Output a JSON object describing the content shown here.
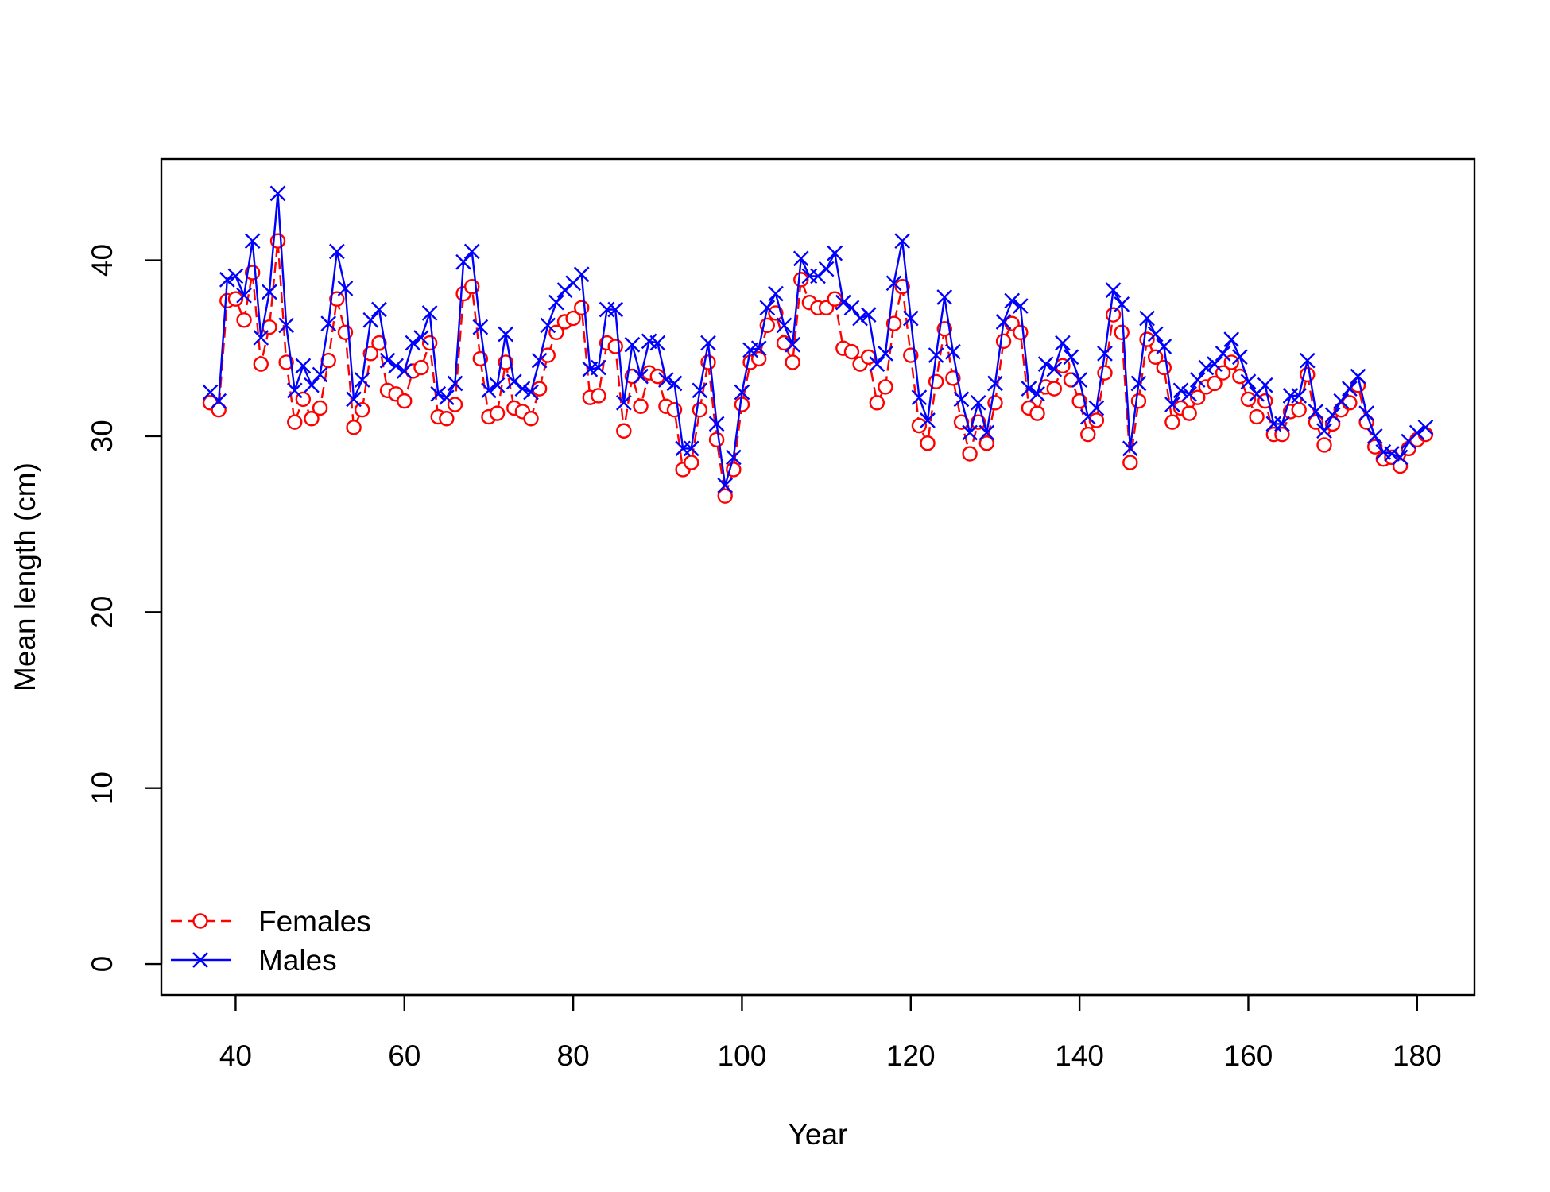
{
  "chart_data": {
    "type": "line",
    "title": "",
    "xlabel": "Year",
    "ylabel": "Mean length (cm)",
    "xlim": [
      31.2,
      186.8
    ],
    "ylim": [
      -1.76,
      45.76
    ],
    "xticks": [
      40,
      60,
      80,
      100,
      120,
      140,
      160,
      180
    ],
    "yticks": [
      0,
      10,
      20,
      30,
      40
    ],
    "grid": false,
    "legend_position": "bottom-left",
    "x": [
      37,
      38,
      39,
      40,
      41,
      42,
      43,
      44,
      45,
      46,
      47,
      48,
      49,
      50,
      51,
      52,
      53,
      54,
      55,
      56,
      57,
      58,
      59,
      60,
      61,
      62,
      63,
      64,
      65,
      66,
      67,
      68,
      69,
      70,
      71,
      72,
      73,
      74,
      75,
      76,
      77,
      78,
      79,
      80,
      81,
      82,
      83,
      84,
      85,
      86,
      87,
      88,
      89,
      90,
      91,
      92,
      93,
      94,
      95,
      96,
      97,
      98,
      99,
      100,
      101,
      102,
      103,
      104,
      105,
      106,
      107,
      108,
      109,
      110,
      111,
      112,
      113,
      114,
      115,
      116,
      117,
      118,
      119,
      120,
      121,
      122,
      123,
      124,
      125,
      126,
      127,
      128,
      129,
      130,
      131,
      132,
      133,
      134,
      135,
      136,
      137,
      138,
      139,
      140,
      141,
      142,
      143,
      144,
      145,
      146,
      147,
      148,
      149,
      150,
      151,
      152,
      153,
      154,
      155,
      156,
      157,
      158,
      159,
      160,
      161,
      162,
      163,
      164,
      165,
      166,
      167,
      168,
      169,
      170,
      171,
      172,
      173,
      174,
      175,
      176,
      177,
      178,
      179,
      180,
      181
    ],
    "series": [
      {
        "name": "Females",
        "color": "#ff0000",
        "line_style": "dashed",
        "marker": "circle",
        "values": [
          31.9,
          31.5,
          37.7,
          37.8,
          36.6,
          39.3,
          34.1,
          36.2,
          41.1,
          34.2,
          30.8,
          32.1,
          31.0,
          31.6,
          34.3,
          37.8,
          35.9,
          30.5,
          31.5,
          34.7,
          35.3,
          32.6,
          32.4,
          32.0,
          33.7,
          33.9,
          35.3,
          31.1,
          31.0,
          31.8,
          38.1,
          38.5,
          34.4,
          31.1,
          31.3,
          34.2,
          31.6,
          31.4,
          31.0,
          32.7,
          34.6,
          35.9,
          36.5,
          36.7,
          37.3,
          32.2,
          32.3,
          35.3,
          35.1,
          30.3,
          33.4,
          31.7,
          33.6,
          33.4,
          31.7,
          31.5,
          28.1,
          28.5,
          31.5,
          34.2,
          29.8,
          26.6,
          28.1,
          31.8,
          34.2,
          34.4,
          36.3,
          37.0,
          35.3,
          34.2,
          38.9,
          37.6,
          37.3,
          37.3,
          37.8,
          35.0,
          34.8,
          34.1,
          34.5,
          31.9,
          32.8,
          36.4,
          38.5,
          34.6,
          30.6,
          29.6,
          33.1,
          36.1,
          33.3,
          30.8,
          29.0,
          30.8,
          29.6,
          31.9,
          35.4,
          36.4,
          35.9,
          31.6,
          31.3,
          32.8,
          32.7,
          34.0,
          33.2,
          32.0,
          30.1,
          30.9,
          33.6,
          36.9,
          35.9,
          28.5,
          32.0,
          35.5,
          34.5,
          33.9,
          30.8,
          31.6,
          31.3,
          32.2,
          32.8,
          33.0,
          33.6,
          34.2,
          33.4,
          32.1,
          31.1,
          32.0,
          30.1,
          30.1,
          31.4,
          31.5,
          33.5,
          30.8,
          29.5,
          30.7,
          31.5,
          31.9,
          32.9,
          30.8,
          29.4,
          28.7,
          28.8,
          28.3,
          29.3,
          29.8,
          30.1
        ]
      },
      {
        "name": "Males",
        "color": "#0000ff",
        "line_style": "solid",
        "marker": "x",
        "values": [
          32.5,
          32.0,
          38.9,
          39.1,
          38.0,
          41.1,
          35.6,
          38.2,
          43.8,
          36.3,
          32.6,
          34.0,
          32.9,
          33.5,
          36.4,
          40.5,
          38.4,
          32.1,
          33.2,
          36.6,
          37.2,
          34.3,
          34.0,
          33.7,
          35.3,
          35.6,
          37.0,
          32.4,
          32.2,
          33.0,
          39.9,
          40.5,
          36.2,
          32.6,
          32.9,
          35.8,
          33.1,
          32.7,
          32.5,
          34.3,
          36.3,
          37.6,
          38.3,
          38.7,
          39.2,
          33.8,
          33.9,
          37.2,
          37.2,
          31.9,
          35.2,
          33.4,
          35.4,
          35.3,
          33.2,
          33.0,
          29.3,
          29.3,
          32.6,
          35.3,
          30.7,
          27.2,
          28.8,
          32.5,
          34.9,
          35.0,
          37.3,
          38.1,
          36.3,
          35.2,
          40.1,
          39.1,
          39.1,
          39.5,
          40.4,
          37.6,
          37.3,
          36.7,
          36.9,
          34.1,
          34.7,
          38.7,
          41.1,
          36.7,
          32.2,
          30.9,
          34.6,
          37.9,
          34.8,
          32.1,
          30.2,
          31.9,
          30.2,
          33.0,
          36.5,
          37.7,
          37.4,
          32.7,
          32.4,
          34.1,
          33.8,
          35.3,
          34.5,
          33.2,
          31.1,
          31.6,
          34.7,
          38.3,
          37.5,
          29.3,
          33.0,
          36.7,
          35.8,
          35.1,
          31.8,
          32.6,
          32.4,
          33.2,
          33.9,
          34.1,
          34.7,
          35.5,
          34.5,
          33.1,
          32.4,
          32.9,
          30.7,
          30.7,
          32.3,
          32.3,
          34.3,
          31.4,
          30.3,
          31.2,
          32.0,
          32.7,
          33.4,
          31.3,
          30.0,
          29.1,
          29.0,
          28.8,
          29.7,
          30.2,
          30.5
        ]
      }
    ]
  }
}
